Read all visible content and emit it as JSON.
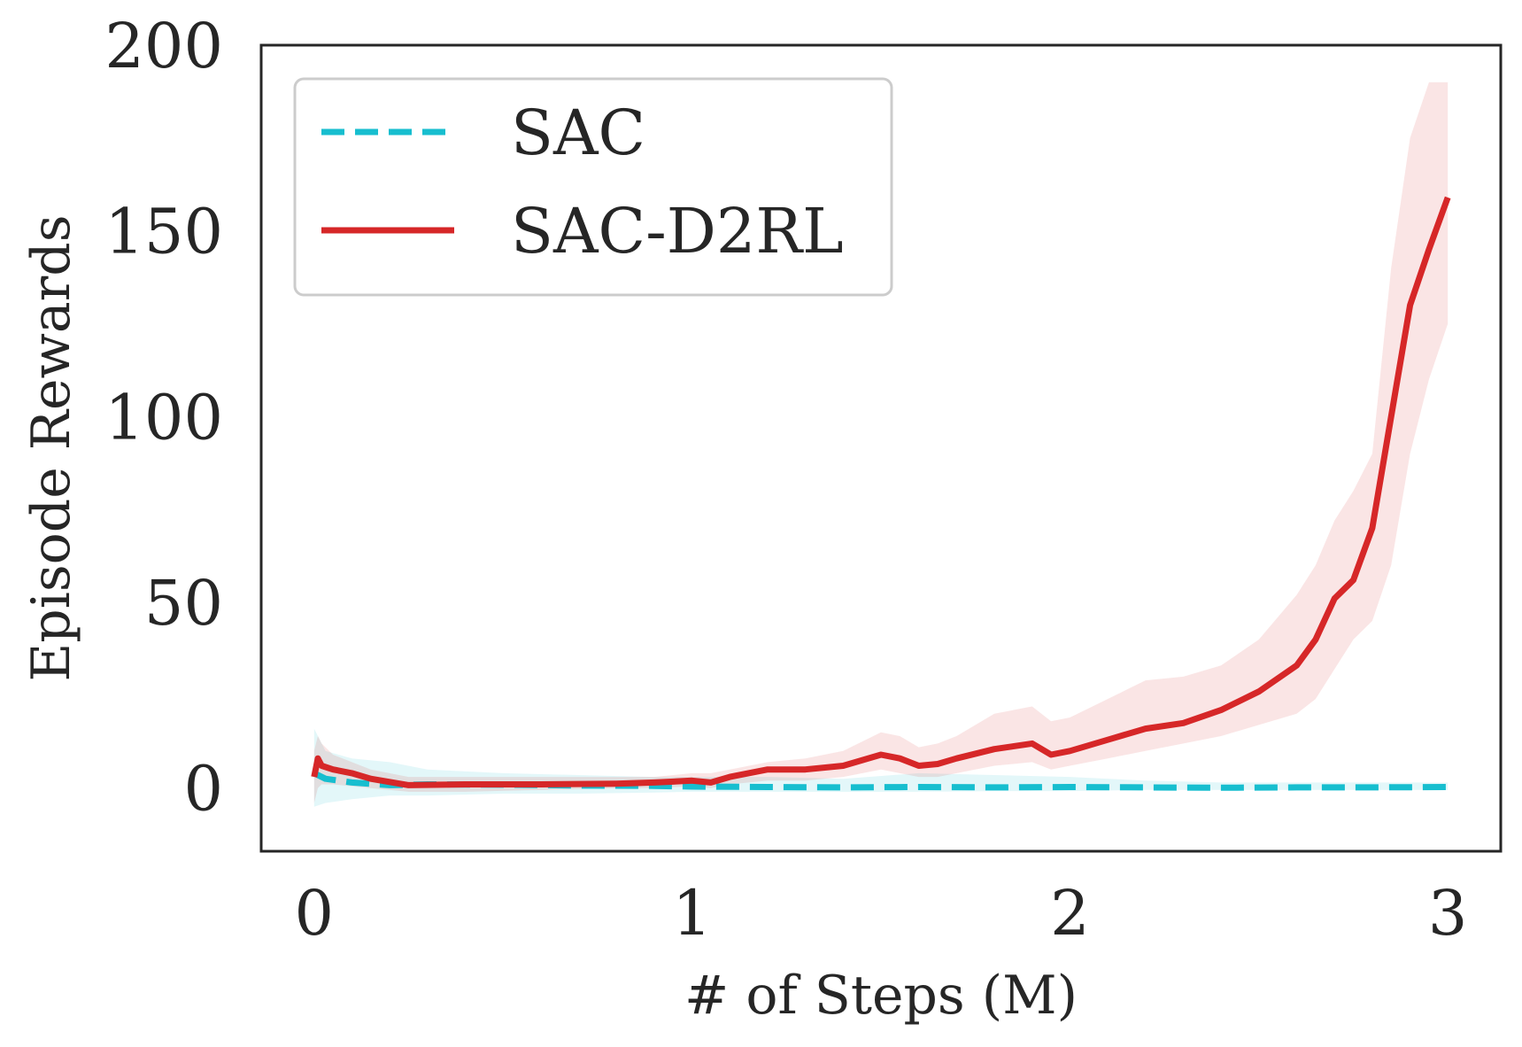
{
  "chart_data": {
    "type": "line",
    "title": "",
    "xlabel": "# of Steps (M)",
    "ylabel": "Episode Rewards",
    "xlim": [
      -0.14,
      3.14
    ],
    "ylim": [
      -17,
      200
    ],
    "xticks": [
      0,
      1,
      2,
      3
    ],
    "yticks": [
      0,
      50,
      100,
      150,
      200
    ],
    "grid": false,
    "legend_position": "top-left",
    "series": [
      {
        "name": "SAC",
        "color": "#17becf",
        "style": "dashed",
        "x": [
          0,
          0.03,
          0.1,
          0.2,
          0.3,
          0.5,
          0.7,
          0.9,
          1.0,
          1.2,
          1.4,
          1.6,
          1.8,
          2.0,
          2.2,
          2.4,
          2.6,
          2.8,
          3.0
        ],
        "y": [
          4,
          2.5,
          1.5,
          0.8,
          1.0,
          0.9,
          0.7,
          0.6,
          0.4,
          0.3,
          0.2,
          0.3,
          0.2,
          0.3,
          0.2,
          0.1,
          0.2,
          0.2,
          0.3
        ],
        "lower": [
          -5,
          -4,
          -3,
          -2,
          -2,
          -1.5,
          -1.5,
          -1.2,
          -1,
          -1,
          -1,
          -1,
          -0.8,
          -0.8,
          -0.5,
          -0.5,
          -0.5,
          -0.5,
          -0.5
        ],
        "upper": [
          16,
          10,
          8,
          7,
          5,
          4,
          3.5,
          3,
          3,
          3,
          2.5,
          4,
          3.5,
          3,
          2,
          1.5,
          1.5,
          1.5,
          1.5
        ]
      },
      {
        "name": "SAC-D2RL",
        "color": "#d62728",
        "style": "solid",
        "x": [
          0,
          0.01,
          0.02,
          0.05,
          0.1,
          0.15,
          0.25,
          0.4,
          0.6,
          0.8,
          0.9,
          1.0,
          1.05,
          1.1,
          1.2,
          1.3,
          1.4,
          1.5,
          1.55,
          1.6,
          1.65,
          1.7,
          1.8,
          1.9,
          1.95,
          2.0,
          2.1,
          2.2,
          2.3,
          2.4,
          2.5,
          2.6,
          2.65,
          2.7,
          2.75,
          2.8,
          2.85,
          2.9,
          2.95,
          3.0
        ],
        "y": [
          3,
          8,
          6,
          5,
          4,
          2.5,
          0.8,
          1.0,
          1.0,
          1.2,
          1.5,
          2.0,
          1.5,
          3.0,
          5.0,
          5.0,
          6.0,
          9.0,
          8.0,
          6.0,
          6.5,
          8.0,
          10.5,
          12.0,
          9.0,
          10.0,
          13.0,
          16.0,
          17.5,
          21.0,
          26.0,
          33.0,
          40.0,
          51.0,
          56.0,
          70.0,
          100.0,
          130.0,
          145.0,
          159.0
        ],
        "lower": [
          -4,
          0,
          1,
          1,
          0.5,
          0,
          -1,
          -1,
          -0.5,
          0,
          0,
          0.5,
          0,
          1,
          2,
          2,
          3,
          5,
          4,
          3,
          3,
          4,
          6,
          7,
          5,
          6,
          8,
          10,
          12,
          14,
          17,
          20,
          24,
          32,
          40,
          45,
          60,
          90,
          110,
          125
        ],
        "upper": [
          10,
          14,
          12,
          9,
          7,
          5,
          3,
          3,
          3,
          3,
          3,
          4,
          4,
          5,
          7,
          8,
          10,
          15,
          14,
          11,
          12,
          14,
          20,
          22,
          18,
          19,
          24,
          29,
          30,
          33,
          40,
          52,
          60,
          72,
          80,
          90,
          140,
          175,
          190,
          190
        ]
      }
    ]
  }
}
